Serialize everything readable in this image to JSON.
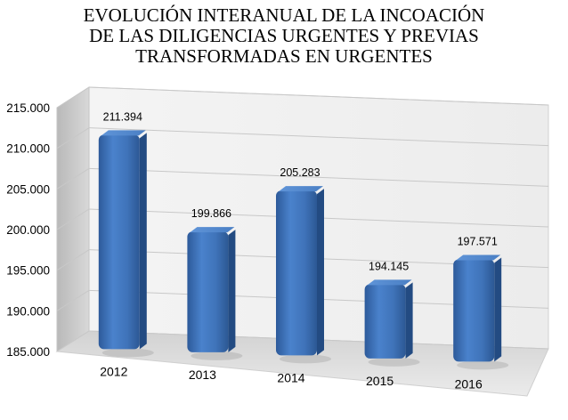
{
  "chart_data": {
    "type": "bar",
    "title_lines": [
      "EVOLUCIÓN INTERANUAL DE LA INCOACIÓN",
      "DE LAS DILIGENCIAS URGENTES Y PREVIAS",
      "TRANSFORMADAS EN URGENTES"
    ],
    "categories": [
      "2012",
      "2013",
      "2014",
      "2015",
      "2016"
    ],
    "values": [
      211394,
      199866,
      205283,
      194145,
      197571
    ],
    "data_labels": [
      "211.394",
      "199.866",
      "205.283",
      "194.145",
      "197.571"
    ],
    "yticks": [
      185000,
      190000,
      195000,
      200000,
      205000,
      210000,
      215000
    ],
    "ytick_labels": [
      "185.000",
      "190.000",
      "195.000",
      "200.000",
      "205.000",
      "210.000",
      "215.000"
    ],
    "ylim": [
      185000,
      215000
    ],
    "grid": true,
    "legend": "none",
    "bar_color": "#3f73b9",
    "style": "3d-perspective"
  }
}
